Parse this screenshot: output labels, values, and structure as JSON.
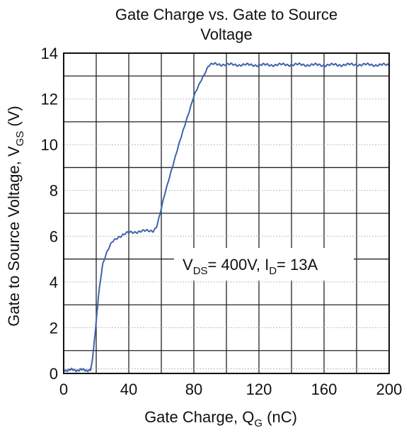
{
  "chart_data": {
    "type": "line",
    "title_lines": [
      "Gate Charge vs. Gate to Source",
      "Voltage"
    ],
    "xlabel": {
      "main": "Gate Charge, Q",
      "sub": "G",
      "unit": " (nC)"
    },
    "ylabel": {
      "main": "Gate to Source Voltage, V",
      "sub": "GS",
      "unit": " (V)"
    },
    "xlim": [
      0,
      200
    ],
    "ylim": [
      0,
      14
    ],
    "x_ticks": [
      "0",
      "40",
      "80",
      "120",
      "160",
      "200"
    ],
    "y_ticks": [
      "0",
      "2",
      "4",
      "6",
      "8",
      "10",
      "12",
      "14"
    ],
    "grid": true,
    "annotation": {
      "p1": "V",
      "s1": "DS",
      "p2": "= 400V, I",
      "s2": "D",
      "p3": "= 13A"
    },
    "line_color": "#3e63ad",
    "series": [
      {
        "x": [
          0,
          16.5,
          17.5,
          19,
          20.5,
          22,
          24,
          26,
          28,
          30,
          33,
          36,
          40,
          45,
          50,
          55,
          57,
          59,
          62,
          65,
          70,
          75,
          80,
          85,
          89,
          91,
          93,
          100,
          120,
          140,
          160,
          180,
          200
        ],
        "y": [
          0.15,
          0.15,
          0.5,
          1.5,
          2.7,
          3.8,
          4.8,
          5.2,
          5.5,
          5.75,
          5.95,
          6.05,
          6.15,
          6.2,
          6.22,
          6.25,
          6.4,
          6.9,
          7.8,
          8.6,
          9.8,
          11.0,
          12.1,
          12.9,
          13.45,
          13.5,
          13.52,
          13.5,
          13.48,
          13.5,
          13.48,
          13.5,
          13.48
        ]
      }
    ]
  }
}
